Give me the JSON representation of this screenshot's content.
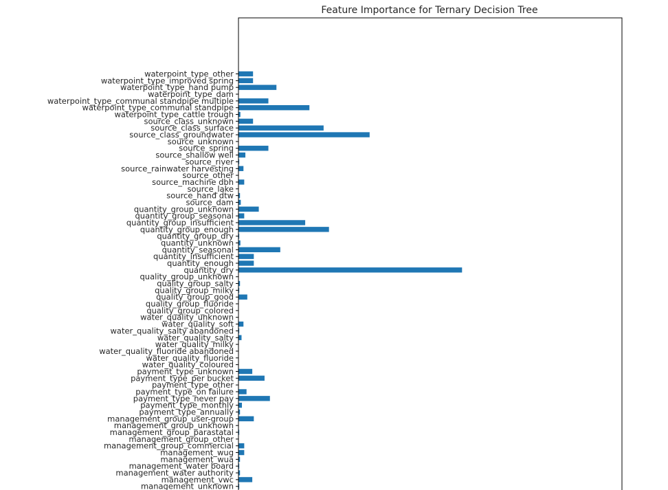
{
  "colors": {
    "bar": "#1f77b4",
    "axis": "#000000",
    "text": "#262626"
  },
  "chart_data": {
    "type": "bar",
    "orientation": "horizontal",
    "title": "Feature Importance for Ternary Decision Tree",
    "xlabel": "",
    "ylabel": "",
    "xlim": [
      0,
      1
    ],
    "grid": false,
    "legend": "none",
    "note": "x-axis tick labels not visible; values are relative fractions of the axis range estimated from bar lengths",
    "categories": [
      "waterpoint_type_other",
      "waterpoint_type_improved spring",
      "waterpoint_type_hand pump",
      "waterpoint_type_dam",
      "waterpoint_type_communal standpipe multiple",
      "waterpoint_type_communal standpipe",
      "waterpoint_type_cattle trough",
      "source_class_unknown",
      "source_class_surface",
      "source_class_groundwater",
      "source_unknown",
      "source_spring",
      "source_shallow well",
      "source_river",
      "source_rainwater harvesting",
      "source_other",
      "source_machine dbh",
      "source_lake",
      "source_hand dtw",
      "source_dam",
      "quantity_group_unknown",
      "quantity_group_seasonal",
      "quantity_group_insufficient",
      "quantity_group_enough",
      "quantity_group_dry",
      "quantity_unknown",
      "quantity_seasonal",
      "quantity_insufficient",
      "quantity_enough",
      "quantity_dry",
      "quality_group_unknown",
      "quality_group_salty",
      "quality_group_milky",
      "quality_group_good",
      "quality_group_fluoride",
      "quality_group_colored",
      "water_quality_unknown",
      "water_quality_soft",
      "water_quality_salty abandoned",
      "water_quality_salty",
      "water_quality_milky",
      "water_quality_fluoride abandoned",
      "water_quality_fluoride",
      "water_quality_coloured",
      "payment_type_unknown",
      "payment_type_per bucket",
      "payment_type_other",
      "payment_type_on failure",
      "payment_type_never pay",
      "payment_type_monthly",
      "payment_type_annually",
      "management_group_user-group",
      "management_group_unknown",
      "management_group_parastatal",
      "management_group_other",
      "management_group_commercial",
      "management_wug",
      "management_wua",
      "management_water board",
      "management_water authority",
      "management_vwc",
      "management_unknown"
    ],
    "values": [
      0.038,
      0.038,
      0.099,
      0.0,
      0.078,
      0.185,
      0.005,
      0.038,
      0.222,
      0.342,
      0.0,
      0.078,
      0.018,
      0.002,
      0.013,
      0.0,
      0.015,
      0.0,
      0.004,
      0.006,
      0.053,
      0.015,
      0.174,
      0.236,
      0.002,
      0.005,
      0.109,
      0.04,
      0.04,
      0.583,
      0.0,
      0.004,
      0.002,
      0.023,
      0.0,
      0.0,
      0.0,
      0.013,
      0.002,
      0.008,
      0.0,
      0.0,
      0.0,
      0.0,
      0.036,
      0.068,
      0.0,
      0.021,
      0.082,
      0.009,
      0.004,
      0.04,
      0.0,
      0.002,
      0.0,
      0.015,
      0.015,
      0.004,
      0.002,
      0.004,
      0.036,
      0.002
    ]
  }
}
